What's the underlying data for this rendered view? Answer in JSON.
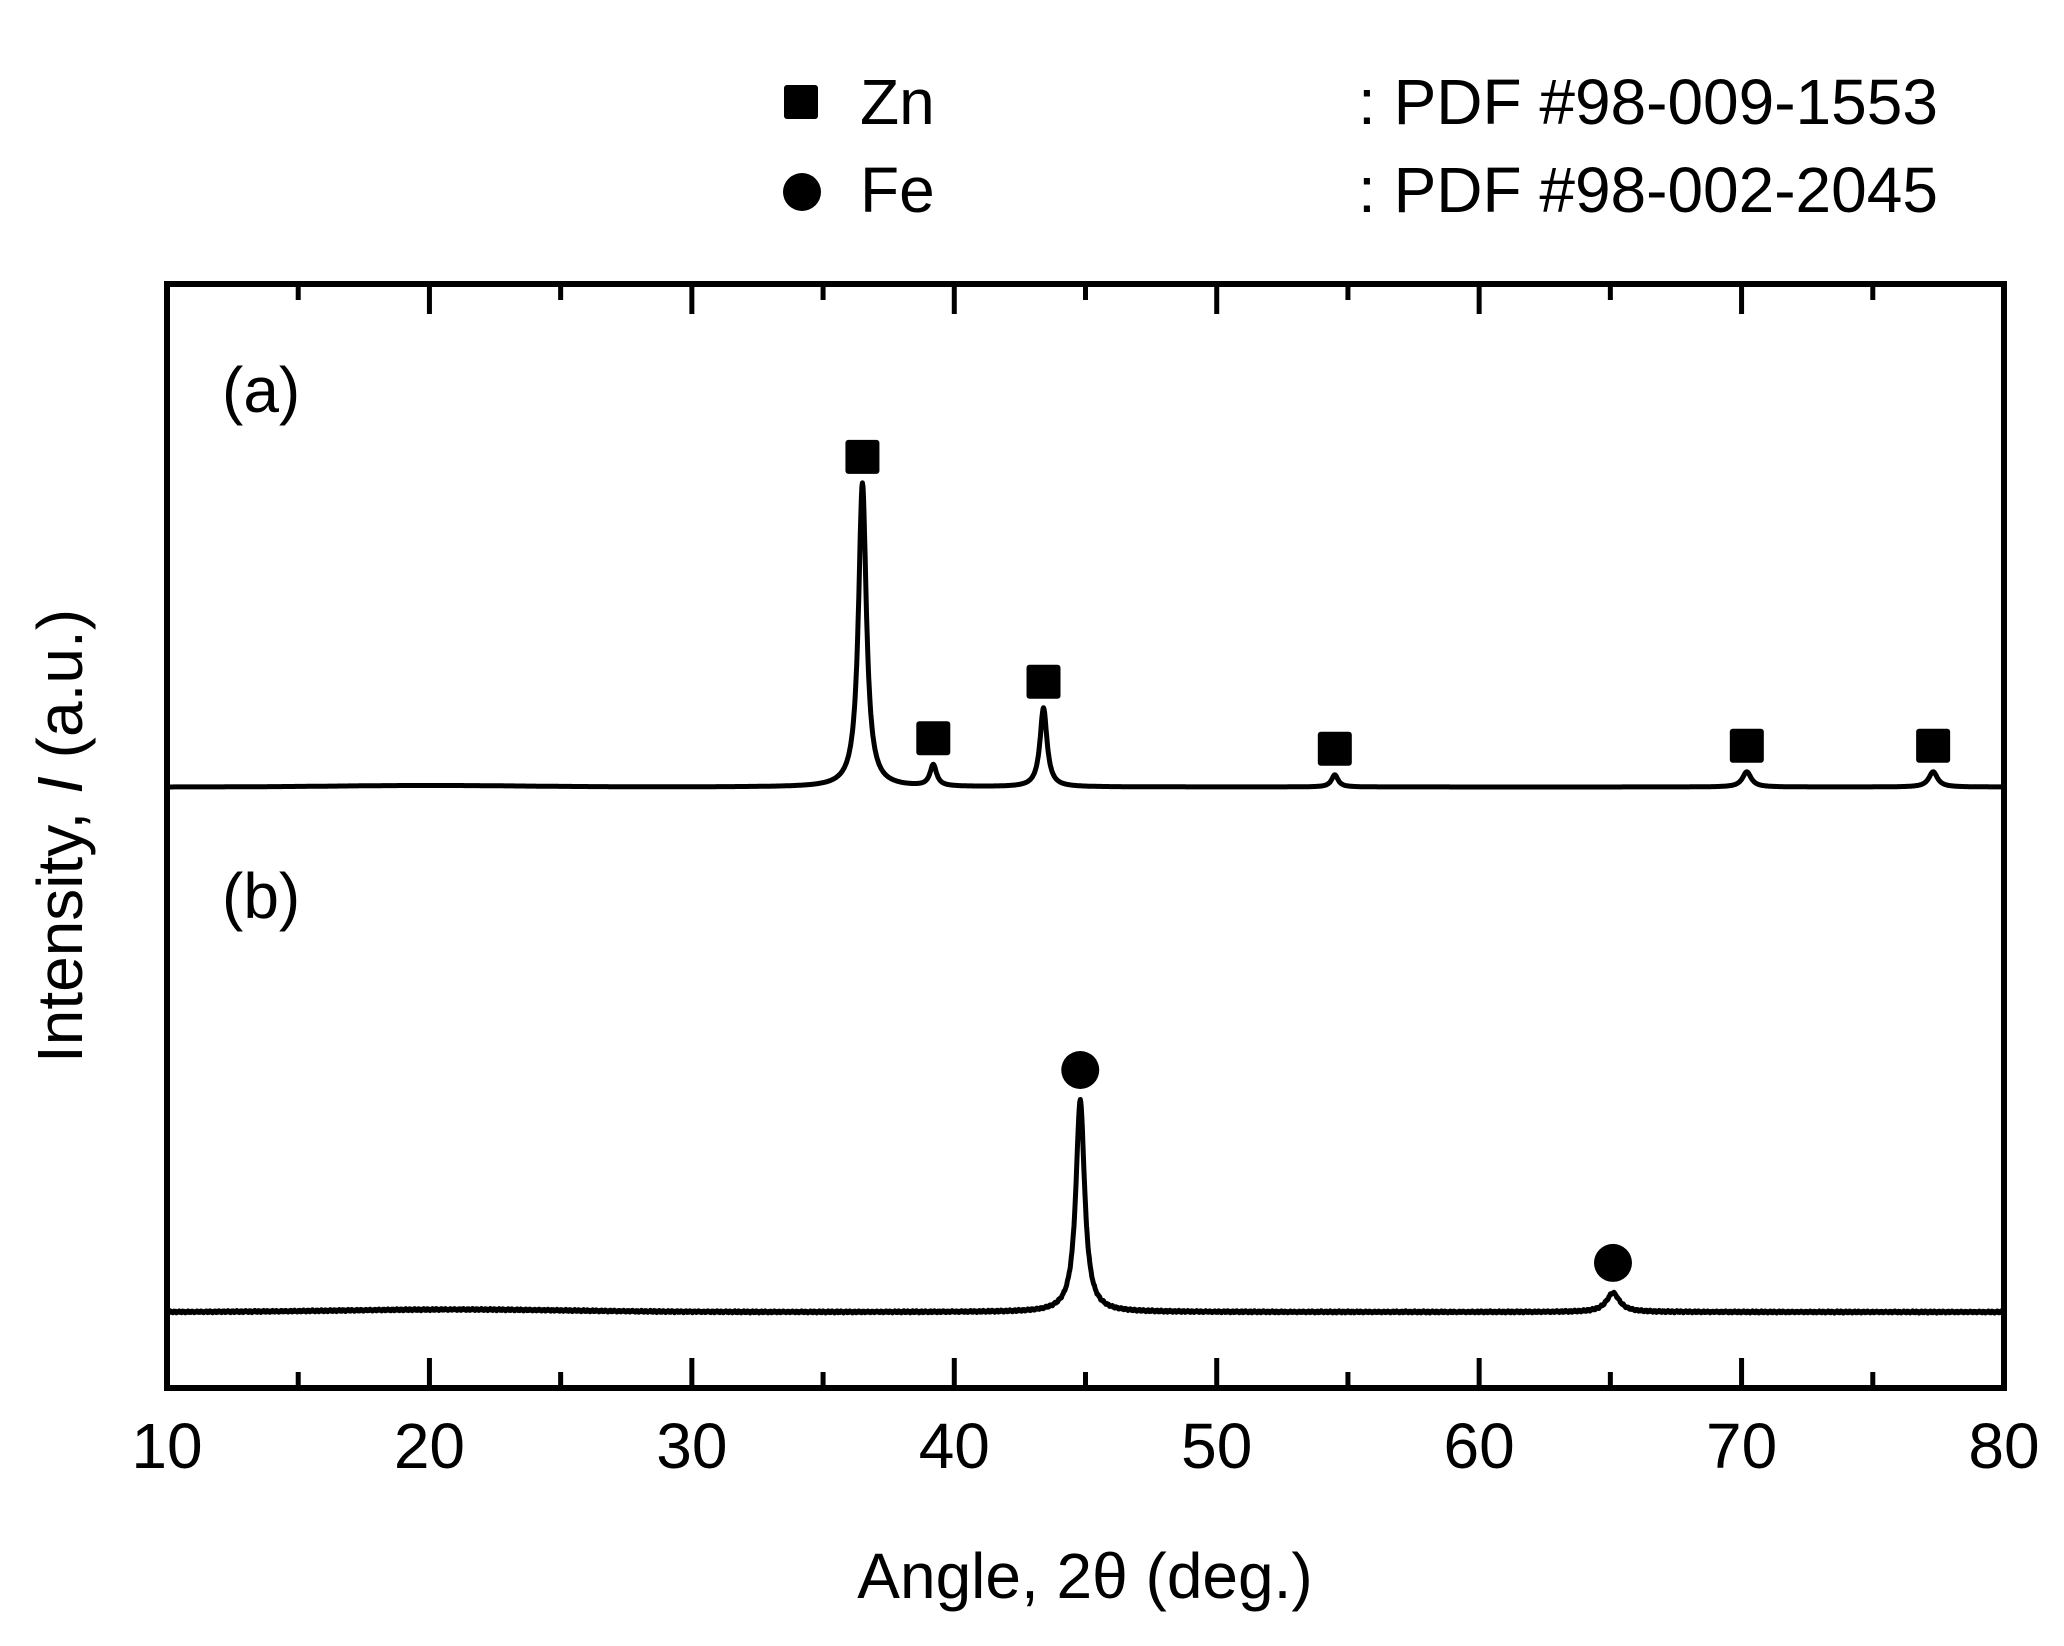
{
  "legend": {
    "items": [
      {
        "marker": "square",
        "label": "Zn",
        "reference": ": PDF #98-009-1553"
      },
      {
        "marker": "circle",
        "label": "Fe",
        "reference": ": PDF #98-002-2045"
      }
    ]
  },
  "colors": {
    "line": "#000000",
    "background": "#ffffff"
  },
  "chart_data": {
    "type": "line",
    "title": "",
    "xlabel": "Angle, 2θ (deg.)",
    "ylabel": "Intensity, I (a.u.)",
    "ylabel_parts": [
      "Intensity, ",
      "I",
      " (a.u.)"
    ],
    "xlim": [
      10,
      80
    ],
    "xticks": [
      10,
      20,
      30,
      40,
      50,
      60,
      70,
      80
    ],
    "xticks_minor": [
      15,
      25,
      35,
      45,
      55,
      65,
      75
    ],
    "yticks": [],
    "grid": false,
    "legend_position": "top (above plot)",
    "series": [
      {
        "name": "(a)",
        "panel_label": "(a)",
        "phase": "Zn",
        "marker": "square",
        "baseline": 0,
        "peaks": [
          {
            "two_theta": 36.5,
            "relative_intensity": 100,
            "width": 0.18
          },
          {
            "two_theta": 39.2,
            "relative_intensity": 7,
            "width": 0.15
          },
          {
            "two_theta": 43.4,
            "relative_intensity": 26,
            "width": 0.16
          },
          {
            "two_theta": 54.5,
            "relative_intensity": 4,
            "width": 0.15
          },
          {
            "two_theta": 70.2,
            "relative_intensity": 5,
            "width": 0.2
          },
          {
            "two_theta": 77.3,
            "relative_intensity": 5,
            "width": 0.2
          }
        ]
      },
      {
        "name": "(b)",
        "panel_label": "(b)",
        "phase": "Fe",
        "marker": "circle",
        "baseline": 0,
        "peaks": [
          {
            "two_theta": 44.8,
            "relative_intensity": 100,
            "width": 0.2
          },
          {
            "two_theta": 65.1,
            "relative_intensity": 9,
            "width": 0.3
          }
        ]
      }
    ]
  }
}
